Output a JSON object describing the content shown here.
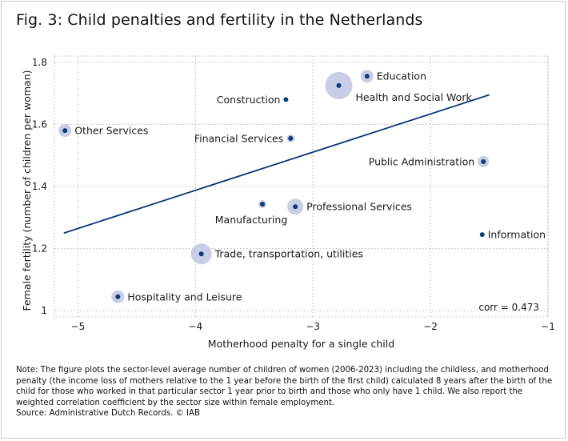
{
  "title": "Fig. 3: Child penalties and fertility in the Netherlands",
  "chart_data": {
    "type": "scatter",
    "xlabel": "Motherhood penalty for a single child",
    "ylabel": "Female fertility (number of children per woman)",
    "xlim": [
      -5.2,
      -1
    ],
    "ylim": [
      0.98,
      1.82
    ],
    "xticks": [
      -5,
      -4,
      -3,
      -2,
      -1
    ],
    "xtick_labels": [
      "−5",
      "−4",
      "−3",
      "−2",
      "−1"
    ],
    "yticks": [
      1.0,
      1.2,
      1.4,
      1.6,
      1.8
    ],
    "ytick_labels": [
      "1",
      "1.2",
      "1.4",
      "1.6",
      "1.8"
    ],
    "grid": true,
    "annotation": "corr = 0.473",
    "fit_line": {
      "x": [
        -5.12,
        -1.5
      ],
      "y": [
        1.25,
        1.695
      ]
    },
    "points": [
      {
        "label": "Education",
        "x": -2.54,
        "y": 1.755,
        "size": 8,
        "label_side": "right"
      },
      {
        "label": "Health and Social Work",
        "x": -2.78,
        "y": 1.725,
        "size": 17,
        "label_side": "below-right"
      },
      {
        "label": "Construction",
        "x": -3.23,
        "y": 1.68,
        "size": 0,
        "label_side": "left"
      },
      {
        "label": "Other Services",
        "x": -5.11,
        "y": 1.58,
        "size": 8,
        "label_side": "right"
      },
      {
        "label": "Financial Services",
        "x": -3.19,
        "y": 1.555,
        "size": 5,
        "label_side": "left"
      },
      {
        "label": "Public Administration",
        "x": -1.55,
        "y": 1.48,
        "size": 7,
        "label_side": "left"
      },
      {
        "label": "Manufacturing",
        "x": -3.43,
        "y": 1.343,
        "size": 5,
        "label_side": "below-left"
      },
      {
        "label": "Professional Services",
        "x": -3.15,
        "y": 1.335,
        "size": 10,
        "label_side": "right"
      },
      {
        "label": "Information",
        "x": -1.56,
        "y": 1.245,
        "size": 0,
        "label_side": "right"
      },
      {
        "label": "Trade, transportation, utilities",
        "x": -3.95,
        "y": 1.183,
        "size": 13,
        "label_side": "right"
      },
      {
        "label": "Hospitality and Leisure",
        "x": -4.66,
        "y": 1.045,
        "size": 8,
        "label_side": "right"
      }
    ]
  },
  "note": {
    "text": "Note: The figure plots the sector-level average number of children of women (2006-2023) including the childless, and motherhood penalty (the income loss of mothers relative to the 1 year before the birth of the first child) calculated 8 years after the birth of the child for those who worked in that particular sector 1 year prior to birth and those who only have 1 child. We also report the weighted correlation coefficient by the sector size within female employment.",
    "source": "Source: Administrative Dutch Records. © IAB"
  },
  "colors": {
    "marker": "#0a3a78",
    "bubble": "#c9cde6",
    "fit_line": "#0a3a78",
    "grid": "#b8b8b8"
  }
}
